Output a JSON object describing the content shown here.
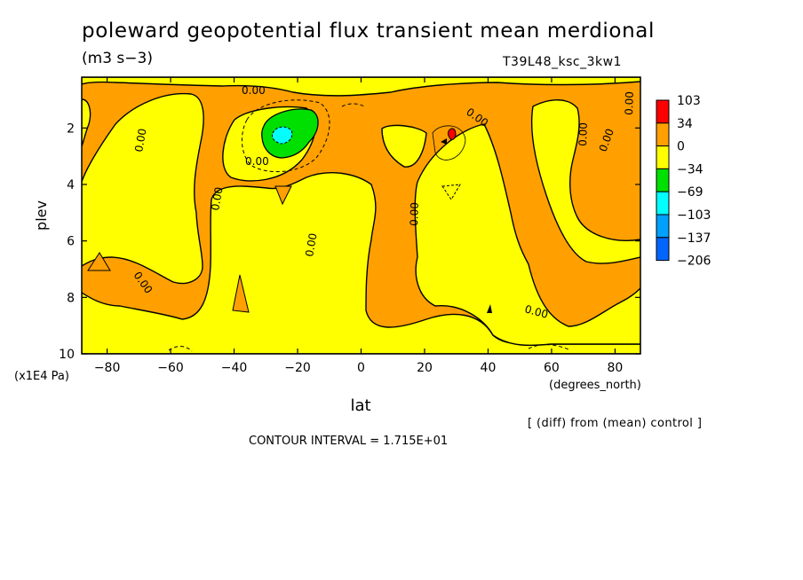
{
  "title": "poleward geopotential flux transient mean merdional",
  "units": "(m3 s−3)",
  "run_label": "T39L48_ksc_3kw1",
  "diff_note": "[ (diff) from (mean) control ]",
  "contour_interval": "CONTOUR INTERVAL = 1.715E+01",
  "chart_data": {
    "type": "heatmap",
    "title": "poleward geopotential flux transient mean merdional",
    "units": "(m3 s−3)",
    "xlabel": "lat",
    "xunit": "(degrees_north)",
    "ylabel": "plev",
    "yunit": "(x1E4 Pa)",
    "xlim": [
      -88,
      88
    ],
    "ylim": [
      10,
      0.2
    ],
    "xticks": [
      -80,
      -60,
      -40,
      -20,
      0,
      20,
      40,
      60,
      80
    ],
    "yticks": [
      2,
      4,
      6,
      8,
      10
    ],
    "colorbar": {
      "levels": [
        "103",
        "34",
        "0",
        "−34",
        "−69",
        "−103",
        "−137",
        "−206"
      ],
      "colors": [
        "#ff0000",
        "#ffa000",
        "#ffff00",
        "#00e000",
        "#00ffff",
        "#00a0ff",
        "#0066ff"
      ]
    },
    "colors": {
      "positive": "#ffa000",
      "near_zero_negative": "#ffff00",
      "minus34_to_minus69": "#00e000",
      "minus69_to_minus103": "#00ffff",
      "max_red": "#ff0000"
    },
    "contour_labels": [
      "0.00",
      "0.00",
      "0.00",
      "0.00",
      "0.00",
      "0.00",
      "0.00",
      "0.00",
      "0.00",
      "0.00",
      "0.00",
      "0.00",
      "0.00"
    ],
    "features": [
      {
        "name": "negative minimum",
        "lat": -25,
        "plev": 2.2,
        "level_range": "−69 to −103"
      },
      {
        "name": "positive maximum",
        "lat": 29,
        "plev": 2.2,
        "level_range": "34 to 103"
      }
    ]
  }
}
